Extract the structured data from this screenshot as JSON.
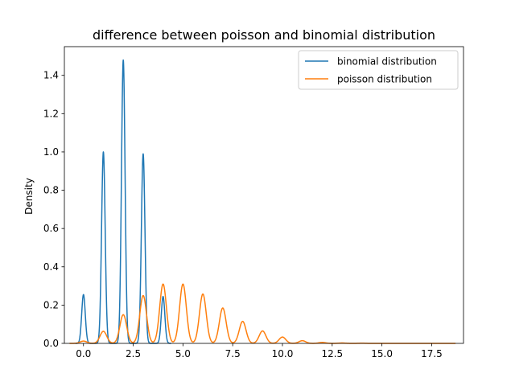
{
  "chart_data": {
    "type": "line",
    "title": "difference between poisson and binomial distribution",
    "xlabel": "",
    "ylabel": "Density",
    "xlim": [
      -0.96,
      19.1
    ],
    "ylim": [
      0,
      1.55
    ],
    "xticks": [
      0.0,
      2.5,
      5.0,
      7.5,
      10.0,
      12.5,
      15.0,
      17.5
    ],
    "xtick_labels": [
      "0.0",
      "2.5",
      "5.0",
      "7.5",
      "10.0",
      "12.5",
      "15.0",
      "17.5"
    ],
    "yticks": [
      0.0,
      0.2,
      0.4,
      0.6,
      0.8,
      1.0,
      1.2,
      1.4
    ],
    "ytick_labels": [
      "0.0",
      "0.2",
      "0.4",
      "0.6",
      "0.8",
      "1.0",
      "1.2",
      "1.4"
    ],
    "grid": false,
    "legend_position": "upper right",
    "series": [
      {
        "name": "binomial distribution",
        "color": "#1f77b4",
        "x_range": [
          -0.4,
          4.4
        ],
        "peaks": [
          {
            "x": 0,
            "y": 0.255
          },
          {
            "x": 1,
            "y": 1.0
          },
          {
            "x": 2,
            "y": 1.48
          },
          {
            "x": 3,
            "y": 0.99
          },
          {
            "x": 4,
            "y": 0.245
          }
        ]
      },
      {
        "name": "poisson distribution",
        "color": "#ff7f0e",
        "x_range": [
          -0.7,
          18.7
        ],
        "peaks": [
          {
            "x": 0,
            "y": 0.012
          },
          {
            "x": 1,
            "y": 0.063
          },
          {
            "x": 2,
            "y": 0.15
          },
          {
            "x": 3,
            "y": 0.25
          },
          {
            "x": 4,
            "y": 0.31
          },
          {
            "x": 5,
            "y": 0.31
          },
          {
            "x": 6,
            "y": 0.258
          },
          {
            "x": 7,
            "y": 0.185
          },
          {
            "x": 8,
            "y": 0.115
          },
          {
            "x": 9,
            "y": 0.065
          },
          {
            "x": 10,
            "y": 0.033
          },
          {
            "x": 11,
            "y": 0.014
          },
          {
            "x": 12,
            "y": 0.005
          },
          {
            "x": 13,
            "y": 0.002
          },
          {
            "x": 14,
            "y": 0.001
          }
        ]
      }
    ]
  }
}
